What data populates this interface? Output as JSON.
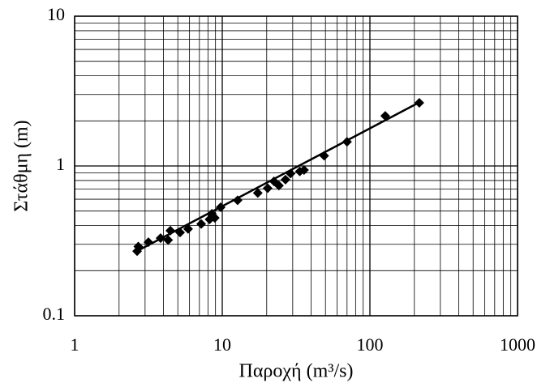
{
  "chart_data": {
    "type": "scatter",
    "x_label": "Παροχή (m³/s)",
    "y_label": "Στάθμη (m)",
    "log_x": true,
    "log_y": true,
    "grid": true,
    "minor_grid": true,
    "xlim": [
      1,
      1000
    ],
    "ylim": [
      0.1,
      10
    ],
    "xticks": [
      1,
      10,
      100,
      1000
    ],
    "yticks": [
      0.1,
      1,
      10
    ],
    "color": "#000000",
    "x": [
      2.65,
      2.7,
      3.16,
      3.82,
      4.3,
      4.45,
      5.18,
      5.87,
      7.2,
      8.2,
      8.5,
      8.9,
      9.75,
      12.7,
      17.4,
      20.3,
      22.4,
      24.2,
      26.8,
      29,
      33.5,
      35.8,
      49,
      70,
      127,
      216
    ],
    "values": [
      0.27,
      0.29,
      0.31,
      0.33,
      0.32,
      0.37,
      0.36,
      0.38,
      0.41,
      0.44,
      0.48,
      0.45,
      0.53,
      0.59,
      0.66,
      0.71,
      0.79,
      0.74,
      0.81,
      0.89,
      0.92,
      0.94,
      1.17,
      1.45,
      2.16,
      2.64
    ],
    "fit_line": {
      "x": [
        2.55,
        210
      ],
      "values": [
        0.265,
        2.62
      ]
    }
  }
}
